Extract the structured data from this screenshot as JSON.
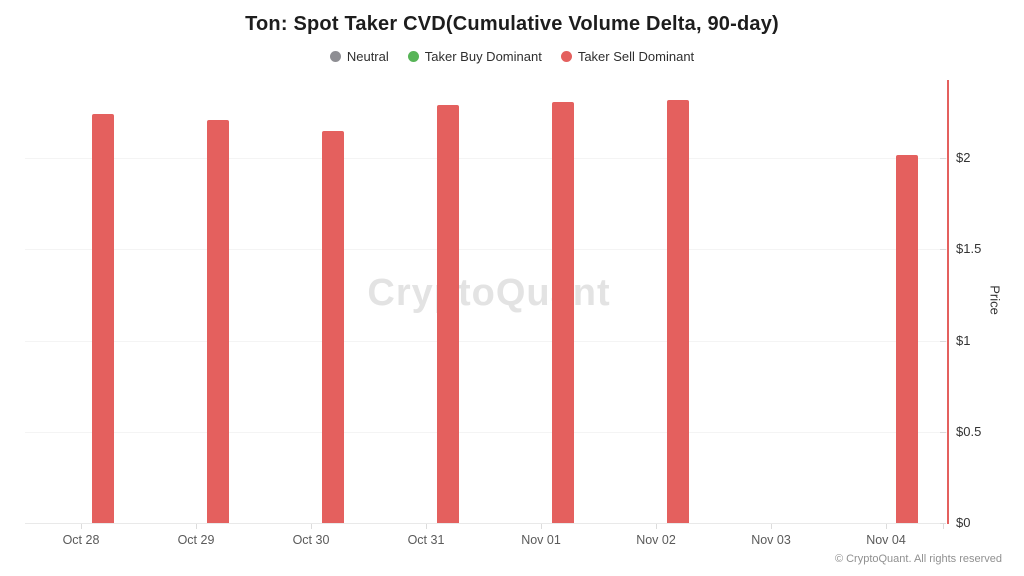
{
  "watermark": "CryptoQuant",
  "attribution": "© CryptoQuant. All rights reserved",
  "chart_data": {
    "type": "bar",
    "title": "Ton: Spot Taker CVD(Cumulative Volume Delta, 90-day)",
    "categories": [
      "Oct 28",
      "Oct 29",
      "Oct 30",
      "Oct 31",
      "Nov 01",
      "Nov 02",
      "Nov 03",
      "Nov 04"
    ],
    "series": [
      {
        "name": "Taker Sell Dominant",
        "color": "#e4605e",
        "values": [
          2.24,
          2.21,
          2.15,
          2.29,
          2.31,
          2.32,
          null,
          2.02
        ]
      }
    ],
    "legend": [
      {
        "label": "Neutral",
        "color": "#8e8e93"
      },
      {
        "label": "Taker Buy Dominant",
        "color": "#57b457"
      },
      {
        "label": "Taker Sell Dominant",
        "color": "#e4605e"
      }
    ],
    "legend_position": "top",
    "xlabel": "",
    "ylabel": "Price",
    "ylabel_side": "right",
    "y_ticks": [
      "$0",
      "$0.5",
      "$1",
      "$1.5",
      "$2"
    ],
    "y_tick_values": [
      0,
      0.5,
      1,
      1.5,
      2
    ],
    "ylim": [
      0,
      2.43
    ],
    "grid": "horizontal-faint",
    "y_axis_line_color": "#e4605e",
    "note": "Nov 03 has no bar (missing data point)"
  }
}
